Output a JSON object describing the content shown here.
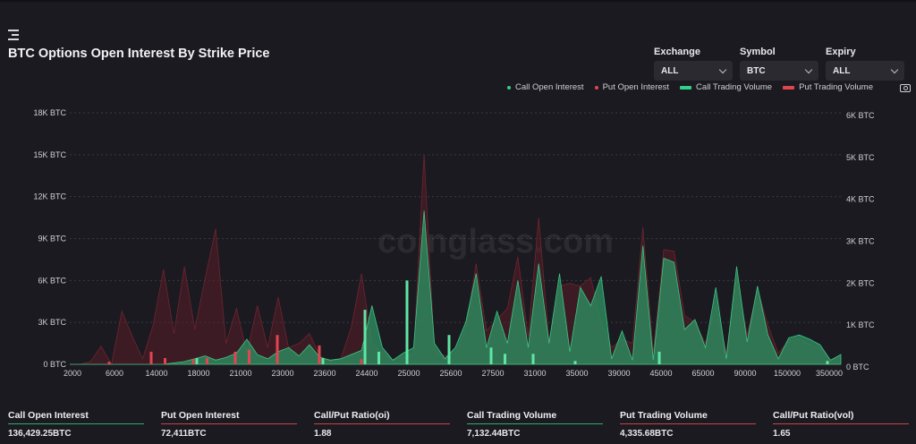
{
  "title": "BTC Options Open Interest By Strike Price",
  "filters": [
    {
      "label": "Exchange",
      "value": "ALL"
    },
    {
      "label": "Symbol",
      "value": "BTC"
    },
    {
      "label": "Expiry",
      "value": "ALL"
    }
  ],
  "watermark": "coinglass.com",
  "colors": {
    "call": "#31d08a",
    "put": "#e0464f",
    "background": "#1b1a20"
  },
  "icons": [
    "menu-icon",
    "chevron-down-icon",
    "camera-icon"
  ],
  "chart_data": {
    "type": "area",
    "x_tick_labels": [
      "2000",
      "6000",
      "14000",
      "18000",
      "21000",
      "23000",
      "23600",
      "24400",
      "25000",
      "25600",
      "27500",
      "31000",
      "35000",
      "39000",
      "45000",
      "65000",
      "90000",
      "150000",
      "350000"
    ],
    "y_left": {
      "ticks": [
        "0 BTC",
        "3K BTC",
        "6K BTC",
        "9K BTC",
        "12K BTC",
        "15K BTC",
        "18K BTC"
      ],
      "range": [
        0,
        18000
      ]
    },
    "y_right": {
      "ticks": [
        "0 BTC",
        "1K BTC",
        "2K BTC",
        "3K BTC",
        "4K BTC",
        "5K BTC",
        "6K BTC"
      ],
      "range": [
        0,
        6000
      ]
    },
    "grid": true,
    "legend_position": "top-right",
    "series": [
      {
        "name": "Call Open Interest",
        "axis": "left",
        "values": [
          0,
          0,
          0,
          0,
          0,
          0,
          0,
          0,
          0,
          0,
          100,
          200,
          400,
          600,
          300,
          500,
          800,
          1800,
          700,
          400,
          900,
          1200,
          600,
          1400,
          500,
          300,
          400,
          700,
          1000,
          4200,
          1200,
          300,
          800,
          1200,
          11000,
          1500,
          400,
          1200,
          3000,
          6500,
          1200,
          3800,
          1500,
          6000,
          1200,
          7200,
          1500,
          6500,
          900,
          5500,
          4200,
          6300,
          400,
          2400,
          300,
          8500,
          300,
          7600,
          7300,
          2500,
          3200,
          1200,
          5500,
          400,
          7000,
          1600,
          5600,
          2100,
          400,
          1900,
          2100,
          1800,
          1400,
          300,
          700
        ]
      },
      {
        "name": "Put Open Interest",
        "axis": "left",
        "values": [
          0,
          0,
          200,
          1300,
          0,
          3800,
          2000,
          400,
          2800,
          6800,
          2200,
          7000,
          2500,
          6200,
          9700,
          1500,
          4000,
          800,
          4200,
          1200,
          4800,
          1200,
          1500,
          2200,
          600,
          200,
          400,
          2600,
          6500,
          1500,
          800,
          300,
          500,
          800,
          15000,
          1000,
          600,
          800,
          2500,
          7200,
          2400,
          3200,
          4000,
          7700,
          2000,
          10500,
          1600,
          5600,
          5800,
          5600,
          6200,
          3000,
          1200,
          1800,
          1500,
          9800,
          800,
          8200,
          8100,
          3500,
          3000,
          1500,
          4200,
          800,
          6200,
          2100,
          5400,
          2800,
          800,
          1700,
          1800,
          1400,
          1200,
          300,
          500
        ]
      },
      {
        "name": "Call Trading Volume",
        "axis": "right",
        "bars": [
          {
            "x": "18000",
            "value": 150
          },
          {
            "x": "23600",
            "value": 150
          },
          {
            "x": "24400",
            "value": 1300
          },
          {
            "x": "24400",
            "value": 300
          },
          {
            "x": "25000",
            "value": 2000
          },
          {
            "x": "25600",
            "value": 700
          },
          {
            "x": "27500",
            "value": 400
          },
          {
            "x": "27500",
            "value": 250
          },
          {
            "x": "31000",
            "value": 250
          },
          {
            "x": "35000",
            "value": 80
          },
          {
            "x": "45000",
            "value": 300
          },
          {
            "x": "350000",
            "value": 80
          }
        ]
      },
      {
        "name": "Put Trading Volume",
        "axis": "right",
        "bars": [
          {
            "x": "6000",
            "value": 60
          },
          {
            "x": "14000",
            "value": 300
          },
          {
            "x": "14000",
            "value": 150
          },
          {
            "x": "18000",
            "value": 120
          },
          {
            "x": "18000",
            "value": 150
          },
          {
            "x": "21000",
            "value": 300
          },
          {
            "x": "21000",
            "value": 350
          },
          {
            "x": "23000",
            "value": 700
          },
          {
            "x": "23600",
            "value": 450
          },
          {
            "x": "24400",
            "value": 120
          }
        ]
      }
    ]
  },
  "stats": [
    {
      "label": "Call Open Interest",
      "value": "136,429.25BTC"
    },
    {
      "label": "Put Open Interest",
      "value": "72,411BTC"
    },
    {
      "label": "Call/Put Ratio(oi)",
      "value": "1.88"
    },
    {
      "label": "Call Trading Volume",
      "value": "7,132.44BTC"
    },
    {
      "label": "Put Trading Volume",
      "value": "4,335.68BTC"
    },
    {
      "label": "Call/Put Ratio(vol)",
      "value": "1.65"
    }
  ]
}
